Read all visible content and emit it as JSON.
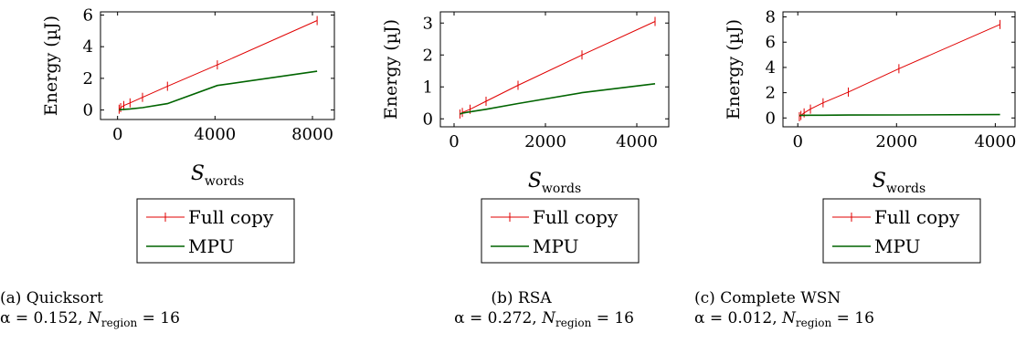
{
  "panels": [
    {
      "id": "a",
      "caption_line1": "(a) Quicksort",
      "alpha_text": "α = 0.152,",
      "n_symbol": "N",
      "n_sub": "region",
      "n_value": " = 16",
      "caption_align": "left",
      "chart_data": {
        "type": "line",
        "xlabel": "S",
        "xlabel_sub": "words",
        "ylabel": "Energy (µJ)",
        "xlim": [
          -700,
          8900
        ],
        "ylim": [
          -0.6,
          6.2
        ],
        "xticks": [
          0,
          4000,
          8000
        ],
        "yticks": [
          0,
          2,
          4,
          6
        ],
        "legend": [
          "Full copy",
          "MPU"
        ],
        "series": [
          {
            "name": "Full copy",
            "color": "#e00000",
            "marker": "vbar",
            "x": [
              64,
              128,
              256,
              512,
              1024,
              2048,
              4096,
              8192
            ],
            "y": [
              0.05,
              0.15,
              0.28,
              0.45,
              0.8,
              1.5,
              2.85,
              5.65
            ]
          },
          {
            "name": "MPU",
            "color": "#006400",
            "marker": "none",
            "x": [
              64,
              128,
              256,
              512,
              1024,
              2048,
              4096,
              8192
            ],
            "y": [
              0.0,
              0.02,
              0.04,
              0.07,
              0.15,
              0.4,
              1.55,
              2.45
            ]
          }
        ]
      }
    },
    {
      "id": "b",
      "caption_line1": "(b) RSA",
      "alpha_text": "α = 0.272,",
      "n_symbol": "N",
      "n_sub": "region",
      "n_value": " = 16",
      "caption_align": "right",
      "chart_data": {
        "type": "line",
        "xlabel": "S",
        "xlabel_sub": "words",
        "ylabel": "Energy (µJ)",
        "xlim": [
          -300,
          4700
        ],
        "ylim": [
          -0.25,
          3.35
        ],
        "xticks": [
          0,
          2000,
          4000
        ],
        "yticks": [
          0,
          1,
          2,
          3
        ],
        "legend": [
          "Full copy",
          "MPU"
        ],
        "series": [
          {
            "name": "Full copy",
            "color": "#e00000",
            "marker": "vbar",
            "x": [
              128,
              181,
              350,
              700,
              1400,
              2800,
              4400
            ],
            "y": [
              0.15,
              0.2,
              0.3,
              0.55,
              1.05,
              2.0,
              3.05
            ]
          },
          {
            "name": "MPU",
            "color": "#006400",
            "marker": "none",
            "x": [
              128,
              181,
              350,
              700,
              1400,
              2800,
              4400
            ],
            "y": [
              0.15,
              0.18,
              0.22,
              0.3,
              0.48,
              0.82,
              1.1
            ]
          }
        ]
      }
    },
    {
      "id": "c",
      "caption_line1": "(c) Complete WSN",
      "alpha_text": "α = 0.012,",
      "n_symbol": "N",
      "n_sub": "region",
      "n_value": " = 16",
      "caption_align": "left",
      "chart_data": {
        "type": "line",
        "xlabel": "S",
        "xlabel_sub": "words",
        "ylabel": "Energy (µJ)",
        "xlim": [
          -300,
          4400
        ],
        "ylim": [
          -0.7,
          8.4
        ],
        "xticks": [
          0,
          2000,
          4000
        ],
        "yticks": [
          0,
          2,
          4,
          6,
          8
        ],
        "legend": [
          "Full copy",
          "MPU"
        ],
        "series": [
          {
            "name": "Full copy",
            "color": "#e00000",
            "marker": "vbar",
            "x": [
              32,
              64,
              128,
              256,
              512,
              1024,
              2048,
              4096
            ],
            "y": [
              0.1,
              0.2,
              0.4,
              0.7,
              1.2,
              2.05,
              3.9,
              7.4
            ]
          },
          {
            "name": "MPU",
            "color": "#006400",
            "marker": "none",
            "x": [
              32,
              64,
              128,
              256,
              512,
              1024,
              2048,
              4096
            ],
            "y": [
              0.2,
              0.21,
              0.21,
              0.22,
              0.22,
              0.23,
              0.24,
              0.27
            ]
          }
        ]
      }
    }
  ]
}
